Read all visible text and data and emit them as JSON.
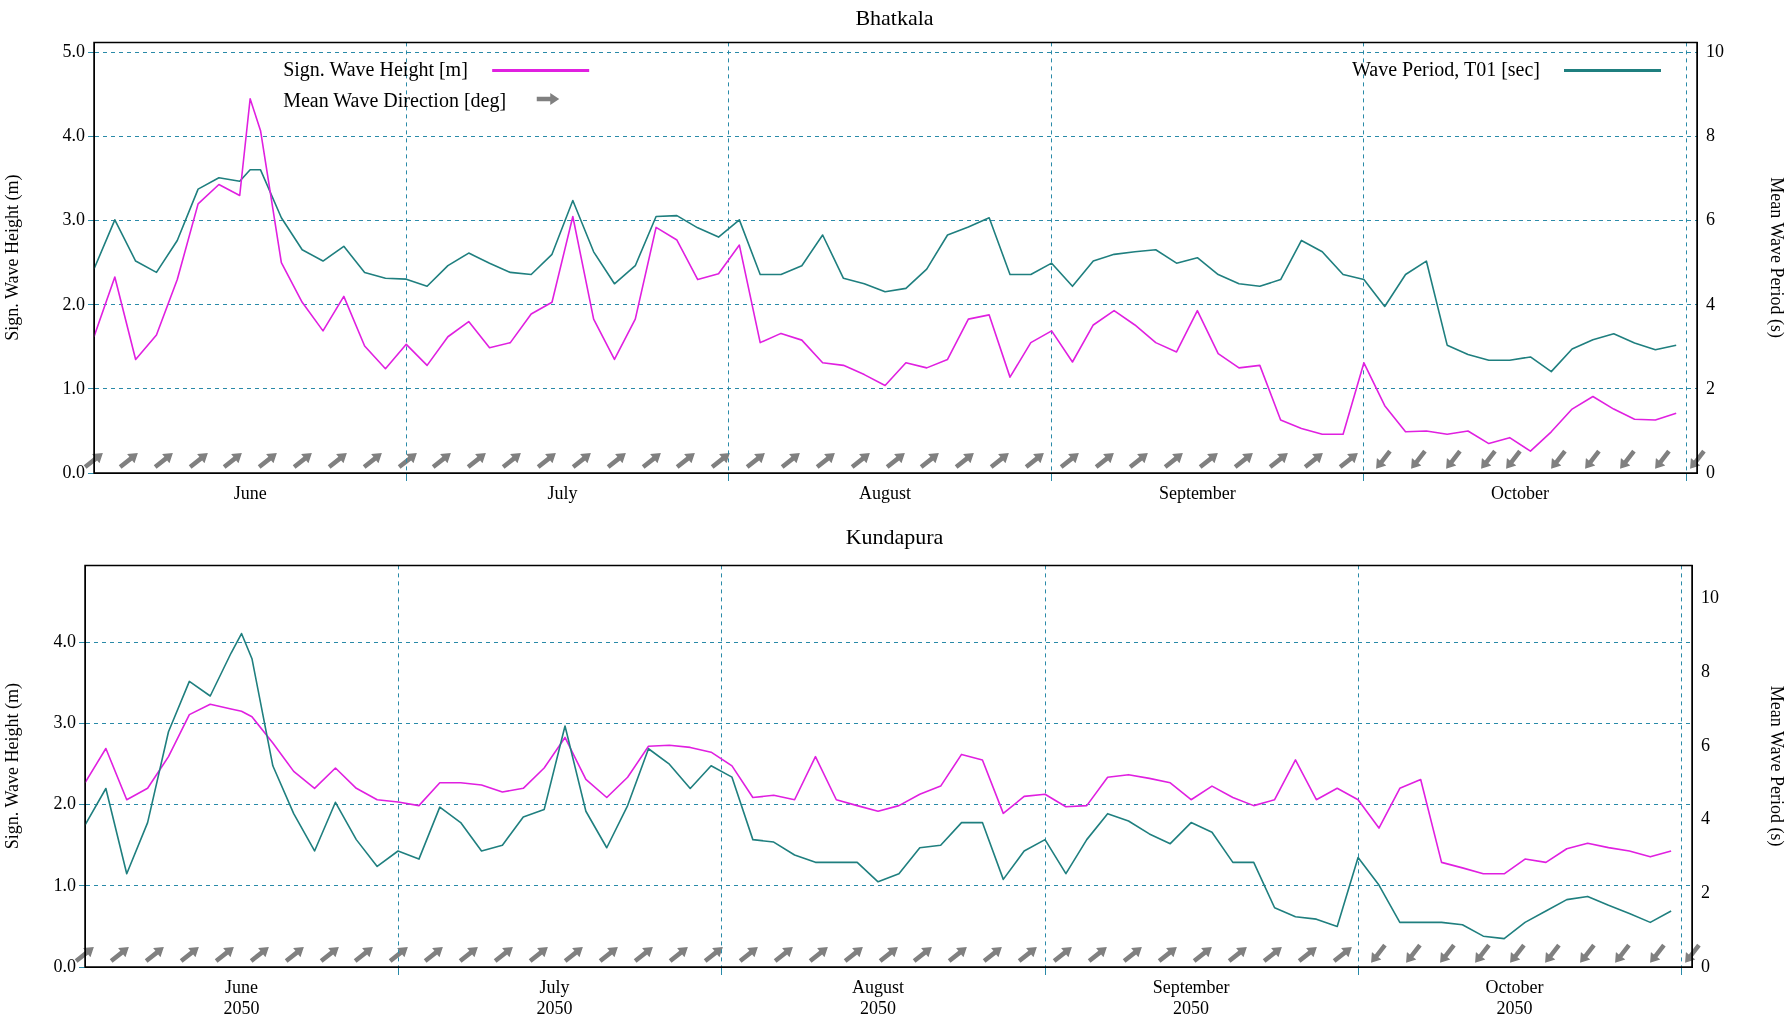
{
  "chart_data": [
    {
      "type": "line",
      "title": "Bhatkala",
      "ylabel": "Sign. Wave Height (m)",
      "y2label": "Mean Wave Period (s)",
      "annotations": [
        "Mean Wave Direction [deg]"
      ],
      "x": [
        "2050-06-01",
        "2050-06-03",
        "2050-06-05",
        "2050-06-07",
        "2050-06-09",
        "2050-06-11",
        "2050-06-13",
        "2050-06-15",
        "2050-06-16",
        "2050-06-17",
        "2050-06-19",
        "2050-06-21",
        "2050-06-23",
        "2050-06-25",
        "2050-06-27",
        "2050-06-29",
        "2050-07-01",
        "2050-07-03",
        "2050-07-05",
        "2050-07-07",
        "2050-07-09",
        "2050-07-11",
        "2050-07-13",
        "2050-07-15",
        "2050-07-17",
        "2050-07-19",
        "2050-07-21",
        "2050-07-23",
        "2050-07-25",
        "2050-07-27",
        "2050-07-29",
        "2050-07-31",
        "2050-08-02",
        "2050-08-04",
        "2050-08-06",
        "2050-08-08",
        "2050-08-10",
        "2050-08-12",
        "2050-08-14",
        "2050-08-16",
        "2050-08-18",
        "2050-08-20",
        "2050-08-22",
        "2050-08-24",
        "2050-08-26",
        "2050-08-28",
        "2050-08-30",
        "2050-09-01",
        "2050-09-03",
        "2050-09-05",
        "2050-09-07",
        "2050-09-09",
        "2050-09-11",
        "2050-09-13",
        "2050-09-15",
        "2050-09-17",
        "2050-09-19",
        "2050-09-21",
        "2050-09-23",
        "2050-09-25",
        "2050-09-27",
        "2050-09-29",
        "2050-10-01",
        "2050-10-03",
        "2050-10-05",
        "2050-10-07",
        "2050-10-09",
        "2050-10-11",
        "2050-10-13",
        "2050-10-15",
        "2050-10-17",
        "2050-10-19",
        "2050-10-21",
        "2050-10-23",
        "2050-10-25",
        "2050-10-27",
        "2050-10-29",
        "2050-10-31"
      ],
      "series": [
        {
          "name": "Sign. Wave Height [m]",
          "color": "#e020e0",
          "values": [
            1.62,
            2.33,
            1.35,
            1.64,
            2.3,
            3.2,
            3.43,
            3.3,
            4.45,
            4.07,
            2.5,
            2.03,
            1.69,
            2.1,
            1.51,
            1.24,
            1.53,
            1.28,
            1.62,
            1.8,
            1.49,
            1.55,
            1.89,
            2.03,
            3.05,
            1.83,
            1.35,
            1.83,
            2.92,
            2.77,
            2.3,
            2.37,
            2.71,
            1.55,
            1.66,
            1.58,
            1.31,
            1.28,
            1.17,
            1.04,
            1.31,
            1.25,
            1.35,
            1.83,
            1.88,
            1.14,
            1.55,
            1.69,
            1.32,
            1.76,
            1.93,
            1.76,
            1.55,
            1.44,
            1.93,
            1.42,
            1.25,
            1.28,
            0.63,
            0.53,
            0.46,
            0.46,
            1.31,
            0.8,
            0.49,
            0.5,
            0.46,
            0.5,
            0.35,
            0.42,
            0.26,
            0.49,
            0.76,
            0.91,
            0.76,
            0.64,
            0.63,
            0.71
          ]
        },
        {
          "name": "Wave Period, T01 [sec]",
          "color": "#1f7f7f",
          "axis": "y2",
          "values": [
            4.85,
            6.02,
            5.04,
            4.77,
            5.53,
            6.75,
            7.02,
            6.94,
            7.21,
            7.21,
            6.07,
            5.31,
            5.04,
            5.39,
            4.77,
            4.63,
            4.61,
            4.44,
            4.93,
            5.23,
            4.99,
            4.77,
            4.72,
            5.2,
            6.48,
            5.26,
            4.5,
            4.93,
            6.1,
            6.12,
            5.83,
            5.61,
            6.02,
            4.72,
            4.72,
            4.93,
            5.66,
            4.63,
            4.5,
            4.31,
            4.39,
            4.85,
            5.66,
            5.85,
            6.07,
            4.72,
            4.72,
            4.99,
            4.44,
            5.04,
            5.2,
            5.26,
            5.31,
            4.99,
            5.12,
            4.72,
            4.5,
            4.44,
            4.6,
            5.53,
            5.26,
            4.72,
            4.6,
            3.96,
            4.72,
            5.04,
            3.04,
            2.82,
            2.68,
            2.68,
            2.76,
            2.41,
            2.95,
            3.17,
            3.31,
            3.09,
            2.93,
            3.04
          ]
        }
      ],
      "xlim": [
        "2050-06-01",
        "2050-11-02"
      ],
      "xticks": [
        {
          "value": "2050-06-16",
          "label": "June"
        },
        {
          "value": "2050-07-01",
          "label": null
        },
        {
          "value": "2050-07-16",
          "label": "July"
        },
        {
          "value": "2050-08-01",
          "label": null
        },
        {
          "value": "2050-08-16",
          "label": "August"
        },
        {
          "value": "2050-09-01",
          "label": null
        },
        {
          "value": "2050-09-15",
          "label": "September"
        },
        {
          "value": "2050-10-01",
          "label": null
        },
        {
          "value": "2050-10-16",
          "label": "October"
        },
        {
          "value": "2050-11-01",
          "label": null
        }
      ],
      "ylim": [
        0,
        5.12
      ],
      "yticks": [
        {
          "value": 0,
          "label": "0.0"
        },
        {
          "value": 1,
          "label": "1.0"
        },
        {
          "value": 2,
          "label": "2.0"
        },
        {
          "value": 3,
          "label": "3.0"
        },
        {
          "value": 4,
          "label": "4.0"
        },
        {
          "value": 5,
          "label": "5.0"
        }
      ],
      "y2lim": [
        0,
        10.24
      ],
      "y2ticks": [
        0,
        2,
        4,
        6,
        8,
        10
      ],
      "grid": true,
      "legend": "top",
      "marker": "none"
    },
    {
      "type": "line",
      "title": "Kundapura",
      "ylabel": "Sign. Wave Height (m)",
      "y2label": "Mean Wave Period (s)",
      "x": [
        "2050-06-01",
        "2050-06-03",
        "2050-06-05",
        "2050-06-07",
        "2050-06-09",
        "2050-06-11",
        "2050-06-13",
        "2050-06-15",
        "2050-06-16",
        "2050-06-17",
        "2050-06-19",
        "2050-06-21",
        "2050-06-23",
        "2050-06-25",
        "2050-06-27",
        "2050-06-29",
        "2050-07-01",
        "2050-07-03",
        "2050-07-05",
        "2050-07-07",
        "2050-07-09",
        "2050-07-11",
        "2050-07-13",
        "2050-07-15",
        "2050-07-17",
        "2050-07-19",
        "2050-07-21",
        "2050-07-23",
        "2050-07-25",
        "2050-07-27",
        "2050-07-29",
        "2050-07-31",
        "2050-08-02",
        "2050-08-04",
        "2050-08-06",
        "2050-08-08",
        "2050-08-10",
        "2050-08-12",
        "2050-08-14",
        "2050-08-16",
        "2050-08-18",
        "2050-08-20",
        "2050-08-22",
        "2050-08-24",
        "2050-08-26",
        "2050-08-28",
        "2050-08-30",
        "2050-09-01",
        "2050-09-03",
        "2050-09-05",
        "2050-09-07",
        "2050-09-09",
        "2050-09-11",
        "2050-09-13",
        "2050-09-15",
        "2050-09-17",
        "2050-09-19",
        "2050-09-21",
        "2050-09-23",
        "2050-09-25",
        "2050-09-27",
        "2050-09-29",
        "2050-10-01",
        "2050-10-03",
        "2050-10-05",
        "2050-10-07",
        "2050-10-09",
        "2050-10-11",
        "2050-10-13",
        "2050-10-15",
        "2050-10-17",
        "2050-10-19",
        "2050-10-21",
        "2050-10-23",
        "2050-10-25",
        "2050-10-27",
        "2050-10-29",
        "2050-10-31"
      ],
      "series": [
        {
          "color": "#1f7f7f",
          "values": [
            1.75,
            2.2,
            1.15,
            1.78,
            2.9,
            3.52,
            3.34,
            3.87,
            4.11,
            3.8,
            2.48,
            1.89,
            1.43,
            2.03,
            1.57,
            1.24,
            1.43,
            1.33,
            1.97,
            1.78,
            1.43,
            1.5,
            1.85,
            1.94,
            2.97,
            1.92,
            1.47,
            1.99,
            2.69,
            2.5,
            2.2,
            2.48,
            2.34,
            1.57,
            1.54,
            1.38,
            1.29,
            1.29,
            1.29,
            1.05,
            1.15,
            1.47,
            1.5,
            1.78,
            1.78,
            1.08,
            1.43,
            1.57,
            1.15,
            1.57,
            1.89,
            1.8,
            1.64,
            1.52,
            1.78,
            1.66,
            1.29,
            1.29,
            0.73,
            0.62,
            0.59,
            0.5,
            1.35,
            1.01,
            0.55,
            0.55,
            0.55,
            0.52,
            0.38,
            0.35,
            0.55,
            0.69,
            0.83,
            0.87,
            0.76,
            0.66,
            0.55,
            0.69
          ]
        },
        {
          "color": "#e020e0",
          "axis": "y2",
          "values": [
            5.0,
            5.93,
            4.54,
            4.85,
            5.71,
            6.85,
            7.13,
            7.0,
            6.94,
            6.79,
            6.08,
            5.31,
            4.85,
            5.4,
            4.85,
            4.54,
            4.48,
            4.38,
            5.0,
            5.0,
            4.94,
            4.75,
            4.85,
            5.4,
            6.23,
            5.09,
            4.6,
            5.15,
            5.99,
            6.02,
            5.96,
            5.83,
            5.46,
            4.6,
            4.66,
            4.54,
            5.71,
            4.54,
            4.38,
            4.23,
            4.38,
            4.69,
            4.91,
            5.77,
            5.62,
            4.17,
            4.63,
            4.69,
            4.35,
            4.38,
            5.15,
            5.22,
            5.12,
            5.0,
            4.54,
            4.91,
            4.6,
            4.38,
            4.54,
            5.62,
            4.54,
            4.85,
            4.54,
            3.77,
            4.85,
            5.09,
            2.84,
            2.69,
            2.53,
            2.53,
            2.93,
            2.84,
            3.21,
            3.36,
            3.24,
            3.15,
            2.99,
            3.15
          ]
        }
      ],
      "xlim": [
        "2050-06-01",
        "2050-11-02"
      ],
      "xticks": [
        {
          "value": "2050-06-16",
          "label": "June\n2050"
        },
        {
          "value": "2050-07-01",
          "label": null
        },
        {
          "value": "2050-07-16",
          "label": "July\n2050"
        },
        {
          "value": "2050-08-01",
          "label": null
        },
        {
          "value": "2050-08-16",
          "label": "August\n2050"
        },
        {
          "value": "2050-09-01",
          "label": null
        },
        {
          "value": "2050-09-15",
          "label": "September\n2050"
        },
        {
          "value": "2050-10-01",
          "label": null
        },
        {
          "value": "2050-10-16",
          "label": "October\n2050"
        },
        {
          "value": "2050-11-01",
          "label": null
        }
      ],
      "ylim": [
        0,
        4.95
      ],
      "yticks": [
        {
          "value": 0,
          "label": "0.0"
        },
        {
          "value": 1,
          "label": "1.0"
        },
        {
          "value": 2,
          "label": "2.0"
        },
        {
          "value": 3,
          "label": "3.0"
        },
        {
          "value": 4,
          "label": "4.0"
        }
      ],
      "y2lim": [
        0,
        10.9
      ],
      "y2ticks": [
        0,
        2,
        4,
        6,
        8,
        10
      ],
      "grid": true,
      "marker": "none"
    }
  ]
}
